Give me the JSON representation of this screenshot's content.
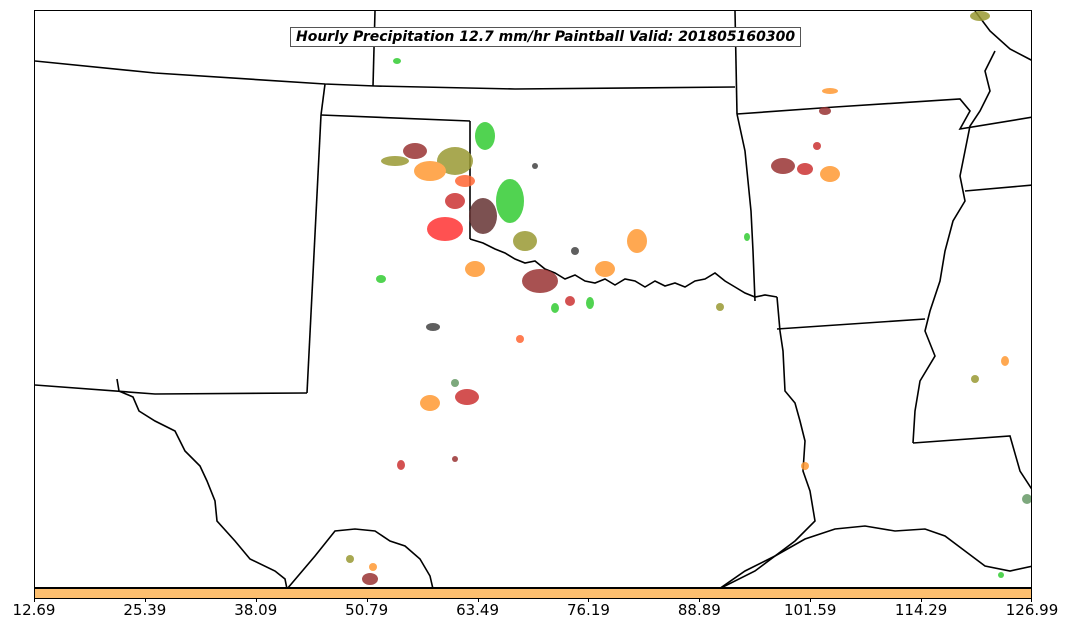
{
  "title": "Hourly Precipitation 12.7 mm/hr Paintball Valid: 201805160300",
  "colorbar": {
    "color": "#fdbf6f",
    "ticks": [
      "12.69",
      "25.39",
      "38.09",
      "50.79",
      "63.49",
      "76.19",
      "88.89",
      "101.59",
      "114.29",
      "126.99"
    ]
  },
  "member_colors": [
    "#33cc33",
    "#66cc33",
    "#999933",
    "#ff9933",
    "#ff6633",
    "#ff3333",
    "#cc3333",
    "#993333",
    "#663333",
    "#444444"
  ]
}
